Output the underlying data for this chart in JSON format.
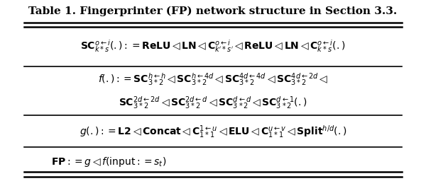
{
  "title": "Table 1. Fingerprinter (FP) network structure in Section 3.3.",
  "row1_line1": "$\\mathbf{SC}^{o\\leftarrow i}_{k*s}(.) := \\mathbf{ReLU}\\triangleleft\\mathbf{LN}\\triangleleft\\mathbf{C}^{o\\leftarrow i}_{k^{\\prime}*s^{\\prime}}\\triangleleft\\mathbf{ReLU}\\triangleleft\\mathbf{LN}\\triangleleft\\mathbf{C}^{o\\leftarrow i}_{k*s}(.)$",
  "row2_line1": "$f(.) := \\mathbf{SC}^{h\\leftarrow h}_{3*2}\\triangleleft\\mathbf{SC}^{h\\leftarrow 4d}_{3*2}\\triangleleft\\mathbf{SC}^{4d\\leftarrow 4d}_{3*2}\\triangleleft\\mathbf{SC}^{4d\\leftarrow 2d}_{3*2}\\triangleleft$",
  "row2_line2": "$\\mathbf{SC}^{2d\\leftarrow 2d}_{3*2}\\triangleleft\\mathbf{SC}^{2d\\leftarrow d}_{3*2}\\triangleleft\\mathbf{SC}^{d\\leftarrow d}_{3*2}\\triangleleft\\mathbf{SC}^{d\\leftarrow 1}_{3*2}(.)$",
  "row3_line1": "$g(.) := \\mathbf{L2}\\triangleleft\\mathbf{Concat}\\triangleleft\\mathbf{C}^{1\\leftarrow u}_{1*1}\\triangleleft\\mathbf{ELU}\\triangleleft\\mathbf{C}^{u\\leftarrow v}_{1*1}\\triangleleft\\mathbf{Split}^{h/d}(.)$",
  "row4_line1": "$\\mathbf{FP} := g\\triangleleft f(\\mathrm{input} := s_t)$",
  "bg_color": "#ffffff",
  "text_color": "#000000",
  "title_fontsize": 11,
  "cell_fontsize": 10
}
